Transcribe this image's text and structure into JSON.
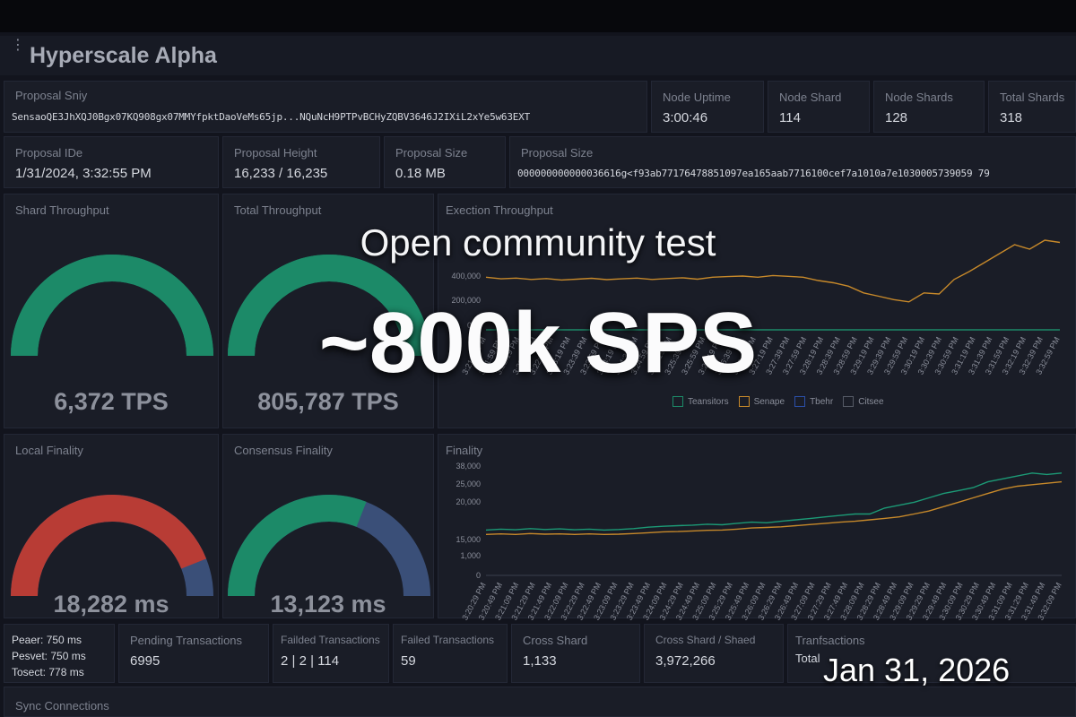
{
  "app": {
    "title": "Hyperscale Alpha"
  },
  "stats_row1": {
    "proposal_entry": {
      "label": "Proposal Sniy",
      "value": "SensaoQE3JhXQJ0Bgx07KQ908gx07MMYfpktDaoVeMs65jp...NQuNcH9PTPvBCHyZQBV3646J2IXiL2xYe5w63EXT"
    },
    "node_uptime": {
      "label": "Node Uptime",
      "value": "3:00:46"
    },
    "node_shard": {
      "label": "Node Shard",
      "value": "114"
    },
    "node_shards": {
      "label": "Node Shards",
      "value": "128"
    },
    "total_shards": {
      "label": "Total Shards",
      "value": "318"
    }
  },
  "stats_row2": {
    "proposal_id": {
      "label": "Proposal IDe",
      "value": "1/31/2024, 3:32:55 PM"
    },
    "proposal_height": {
      "label": "Proposal Height",
      "value": "16,233 / 16,235"
    },
    "proposal_size": {
      "label": "Proposal Size",
      "value": "0.18 MB"
    },
    "proposal_hash": {
      "label": "Proposal Size",
      "value": "000000000000036616g<f93ab77176478851097ea165aab7716100cef7a1010a7e1030005739059 79"
    }
  },
  "gauges": {
    "shard_throughput": {
      "label": "Shard Throughput",
      "value": "6,372 TPS",
      "fraction": 1.0,
      "color": "#1c8a68",
      "track": "#1c8a68"
    },
    "total_throughput": {
      "label": "Total Throughput",
      "value": "805,787 TPS",
      "fraction": 1.0,
      "color": "#1c8a68",
      "track": "#1c8a68"
    },
    "local_finality": {
      "label": "Local Finality",
      "value": "18,282 ms",
      "fraction": 0.88,
      "color": "#b83c35",
      "track": "#3a4f78"
    },
    "consensus_finality": {
      "label": "Consensus Finality",
      "value": "13,123 ms",
      "fraction": 0.62,
      "color": "#1c8a68",
      "track": "#3a4f78"
    }
  },
  "stats_row3": {
    "peers": {
      "lines": [
        "Peaer: 750 ms",
        "Pesvet: 750 ms",
        "Tosect: 778 ms"
      ]
    },
    "pending": {
      "label": "Pending Transactions",
      "value": "6995"
    },
    "failed1": {
      "label": "Failded Transactions",
      "value": "2 | 2 | 114"
    },
    "failed2": {
      "label": "Failed Transactions",
      "value": "59"
    },
    "cross_shard": {
      "label": "Cross Shard",
      "value": "1,133"
    },
    "cross_shard_shared": {
      "label": "Cross Shard / Shaed",
      "value": "3,972,266"
    },
    "transactions": {
      "label": "Tranfsactions",
      "value": "Total"
    }
  },
  "sync": {
    "label": "Sync Connections"
  },
  "overlay": {
    "line1": "Open community test",
    "line2": "~800k SPS",
    "date": "Jan 31, 2026"
  },
  "chart_data": [
    {
      "type": "line",
      "title": "Exection Throughput",
      "ylim": [
        0,
        800000
      ],
      "y_ticks": [
        "400,000",
        "200,000",
        "000"
      ],
      "x_tick_labels": [
        "3:21:39 PM",
        "3:21:59 PM",
        "3:22:19 PM",
        "3:22:39 PM",
        "3:22:59 PM",
        "3:23:19 PM",
        "3:23:39 PM",
        "3:23:59 PM",
        "3:24:19 PM",
        "3:24:39 PM",
        "3:24:59 PM",
        "3:25:19 PM",
        "3:25:39 PM",
        "3:25:59 PM",
        "3:26:19 PM",
        "3:26:39 PM",
        "3:26:59 PM",
        "3:27:19 PM",
        "3:27:39 PM",
        "3:27:59 PM",
        "3:28:19 PM",
        "3:28:39 PM",
        "3:28:59 PM",
        "3:29:19 PM",
        "3:29:39 PM",
        "3:29:59 PM",
        "3:30:19 PM",
        "3:30:39 PM",
        "3:30:59 PM",
        "3:31:19 PM",
        "3:31:39 PM",
        "3:31:59 PM",
        "3:32:19 PM",
        "3:32:39 PM",
        "3:32:59 PM"
      ],
      "legend": [
        {
          "name": "Teansitors",
          "color": "#1c8a68"
        },
        {
          "name": "Senape",
          "color": "#c7892a"
        },
        {
          "name": "Tbehr",
          "color": "#2b4fa8"
        },
        {
          "name": "Citsee",
          "color": "#555a66"
        }
      ],
      "series": [
        {
          "name": "Senape",
          "color": "#c7892a",
          "values": [
            470000,
            455000,
            462000,
            450000,
            458000,
            445000,
            452000,
            460000,
            448000,
            455000,
            462000,
            450000,
            458000,
            465000,
            452000,
            470000,
            475000,
            480000,
            470000,
            485000,
            478000,
            470000,
            440000,
            420000,
            390000,
            330000,
            300000,
            270000,
            250000,
            330000,
            320000,
            450000,
            520000,
            600000,
            680000,
            760000,
            720000,
            800000,
            780000
          ]
        },
        {
          "name": "Teansitors",
          "color": "#1c8a68",
          "values": [
            0,
            0,
            0,
            0,
            0,
            0,
            0,
            0,
            0,
            0,
            0,
            0,
            0,
            0,
            0,
            0,
            0,
            0,
            0,
            0,
            0,
            0,
            0,
            0,
            0,
            0,
            0,
            0,
            0,
            0,
            0,
            0,
            0,
            0,
            0,
            0,
            0,
            0,
            0
          ]
        }
      ]
    },
    {
      "type": "line",
      "title": "Finality",
      "ylim": [
        0,
        38000
      ],
      "y_ticks": [
        "38,000",
        "25,000",
        "20,000",
        "15,000",
        "1,000",
        "0"
      ],
      "x_tick_labels": [
        "3:20:29 PM",
        "3:20:49 PM",
        "3:21:09 PM",
        "3:21:29 PM",
        "3:21:49 PM",
        "3:22:09 PM",
        "3:22:29 PM",
        "3:22:49 PM",
        "3:23:09 PM",
        "3:23:29 PM",
        "3:23:49 PM",
        "3:24:09 PM",
        "3:24:29 PM",
        "3:24:49 PM",
        "3:25:09 PM",
        "3:25:29 PM",
        "3:25:49 PM",
        "3:26:09 PM",
        "3:26:29 PM",
        "3:26:49 PM",
        "3:27:09 PM",
        "3:27:29 PM",
        "3:27:49 PM",
        "3:28:09 PM",
        "3:28:29 PM",
        "3:28:49 PM",
        "3:29:09 PM",
        "3:29:29 PM",
        "3:29:49 PM",
        "3:30:09 PM",
        "3:30:29 PM",
        "3:30:49 PM",
        "3:31:09 PM",
        "3:31:29 PM",
        "3:31:49 PM",
        "3:32:09 PM"
      ],
      "series": [
        {
          "name": "",
          "color": "#1c9a76",
          "values": [
            15500,
            15800,
            15600,
            16000,
            15700,
            15900,
            15600,
            15800,
            15500,
            15700,
            16000,
            16500,
            16800,
            17000,
            17200,
            17500,
            17300,
            17800,
            18200,
            18000,
            18500,
            19000,
            19500,
            20000,
            20500,
            21000,
            21000,
            23000,
            24000,
            25000,
            26500,
            28000,
            29000,
            30000,
            32000,
            33000,
            34000,
            35000,
            34500,
            35000
          ]
        },
        {
          "name": "",
          "color": "#c7892a",
          "values": [
            14000,
            14200,
            14000,
            14300,
            14100,
            14200,
            14000,
            14200,
            14000,
            14100,
            14300,
            14600,
            14900,
            15000,
            15200,
            15400,
            15500,
            15800,
            16200,
            16400,
            16600,
            17000,
            17400,
            17800,
            18200,
            18500,
            19000,
            19500,
            20000,
            21000,
            22000,
            23500,
            25000,
            26500,
            28000,
            29500,
            30500,
            31000,
            31500,
            32000
          ]
        }
      ]
    }
  ]
}
